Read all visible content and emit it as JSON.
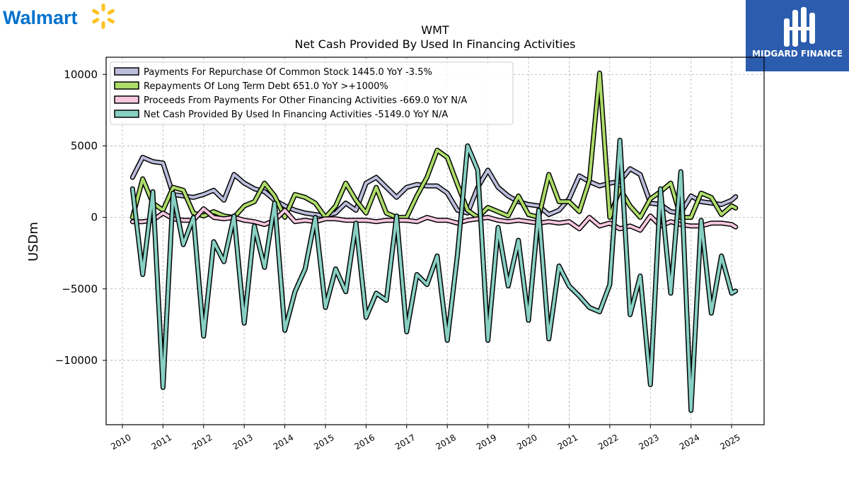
{
  "brand": {
    "left_logo_text": "Walmart",
    "right_logo_text": "MIDGARD FINANCE",
    "right_bg_color": "#2b5cad",
    "walmart_blue": "#0071ce",
    "walmart_yellow": "#ffc220"
  },
  "chart_data": {
    "type": "line",
    "title": "WMT",
    "subtitle": "Net Cash Provided By Used In Financing Activities",
    "ylabel": "USDm",
    "xlabel": "",
    "ylim": [
      -14500,
      11200
    ],
    "xlim": [
      2009.6,
      2025.8
    ],
    "yticks": [
      10000,
      5000,
      0,
      -5000,
      -10000
    ],
    "ytick_labels": [
      "10000",
      "5000",
      "0",
      "−5000",
      "−10000"
    ],
    "xticks": [
      "2010",
      "2011",
      "2012",
      "2013",
      "2014",
      "2015",
      "2016",
      "2017",
      "2018",
      "2019",
      "2020",
      "2021",
      "2022",
      "2023",
      "2024",
      "2025"
    ],
    "grid": true,
    "legend_position": "top-left",
    "series": [
      {
        "name": "Payments For Repurchase Of Common Stock",
        "legend_label": "Payments For Repurchase Of Common Stock  1445.0 YoY -3.5%",
        "color": "#bcbddc",
        "x": [
          2010.25,
          2010.5,
          2010.75,
          2011.0,
          2011.25,
          2011.5,
          2011.75,
          2012.0,
          2012.25,
          2012.5,
          2012.75,
          2013.0,
          2013.25,
          2013.5,
          2013.75,
          2014.0,
          2014.25,
          2014.5,
          2014.75,
          2015.0,
          2015.25,
          2015.5,
          2015.75,
          2016.0,
          2016.25,
          2016.5,
          2016.75,
          2017.0,
          2017.25,
          2017.5,
          2017.75,
          2018.0,
          2018.25,
          2018.5,
          2018.75,
          2019.0,
          2019.25,
          2019.5,
          2019.75,
          2020.0,
          2020.25,
          2020.5,
          2020.75,
          2021.0,
          2021.25,
          2021.5,
          2021.75,
          2022.0,
          2022.25,
          2022.5,
          2022.75,
          2023.0,
          2023.25,
          2023.5,
          2023.75,
          2024.0,
          2024.25,
          2024.5,
          2024.75,
          2025.0,
          2025.1
        ],
        "values": [
          2800,
          4200,
          3900,
          3800,
          1600,
          1500,
          1400,
          1600,
          1900,
          1200,
          3000,
          2400,
          2000,
          1800,
          1200,
          800,
          500,
          300,
          200,
          100,
          300,
          1000,
          500,
          2400,
          2800,
          2100,
          1400,
          2100,
          2300,
          2200,
          2200,
          1700,
          500,
          300,
          2100,
          3300,
          2100,
          1500,
          1100,
          900,
          800,
          200,
          500,
          1300,
          2900,
          2500,
          2200,
          2400,
          2500,
          3400,
          3000,
          1000,
          900,
          400,
          300,
          1500,
          1100,
          1000,
          900,
          1200,
          1450
        ]
      },
      {
        "name": "Repayments Of Long Term Debt",
        "legend_label": "Repayments Of Long Term Debt  651.0 YoY >+1000%",
        "color": "#addd6a",
        "x": [
          2010.25,
          2010.5,
          2010.75,
          2011.0,
          2011.25,
          2011.5,
          2011.75,
          2012.0,
          2012.25,
          2012.5,
          2012.75,
          2013.0,
          2013.25,
          2013.5,
          2013.75,
          2014.0,
          2014.25,
          2014.5,
          2014.75,
          2015.0,
          2015.25,
          2015.5,
          2015.75,
          2016.0,
          2016.25,
          2016.5,
          2016.75,
          2017.0,
          2017.25,
          2017.5,
          2017.75,
          2018.0,
          2018.25,
          2018.5,
          2018.75,
          2019.0,
          2019.25,
          2019.5,
          2019.75,
          2020.0,
          2020.25,
          2020.5,
          2020.75,
          2021.0,
          2021.25,
          2021.5,
          2021.75,
          2022.0,
          2022.25,
          2022.5,
          2022.75,
          2023.0,
          2023.25,
          2023.5,
          2023.75,
          2024.0,
          2024.25,
          2024.5,
          2024.75,
          2025.0,
          2025.1
        ],
        "values": [
          0,
          2700,
          1000,
          500,
          2100,
          1900,
          300,
          100,
          400,
          100,
          0,
          800,
          1100,
          2400,
          1500,
          0,
          1600,
          1400,
          1000,
          0,
          800,
          2400,
          1200,
          300,
          2100,
          300,
          0,
          0,
          1500,
          2800,
          4700,
          4200,
          2300,
          500,
          0,
          700,
          400,
          100,
          1500,
          200,
          0,
          3000,
          1100,
          1100,
          400,
          2600,
          10100,
          0,
          2000,
          800,
          0,
          1300,
          1800,
          2400,
          0,
          0,
          1700,
          1400,
          200,
          800,
          651
        ]
      },
      {
        "name": "Proceeds From Payments For Other Financing Activities",
        "legend_label": "Proceeds From Payments For Other Financing Activities  -669.0 YoY N/A",
        "color": "#f8c8e0",
        "x": [
          2010.25,
          2010.5,
          2010.75,
          2011.0,
          2011.25,
          2011.5,
          2011.75,
          2012.0,
          2012.25,
          2012.5,
          2012.75,
          2013.0,
          2013.25,
          2013.5,
          2013.75,
          2014.0,
          2014.25,
          2014.5,
          2014.75,
          2015.0,
          2015.25,
          2015.5,
          2015.75,
          2016.0,
          2016.25,
          2016.5,
          2016.75,
          2017.0,
          2017.25,
          2017.5,
          2017.75,
          2018.0,
          2018.25,
          2018.5,
          2018.75,
          2019.0,
          2019.25,
          2019.5,
          2019.75,
          2020.0,
          2020.25,
          2020.5,
          2020.75,
          2021.0,
          2021.25,
          2021.5,
          2021.75,
          2022.0,
          2022.25,
          2022.5,
          2022.75,
          2023.0,
          2023.25,
          2023.5,
          2023.75,
          2024.0,
          2024.25,
          2024.5,
          2024.75,
          2025.0,
          2025.1
        ],
        "values": [
          -300,
          -300,
          -200,
          300,
          -100,
          -200,
          -200,
          600,
          0,
          -100,
          0,
          -200,
          -300,
          -500,
          -200,
          500,
          -300,
          -200,
          -300,
          -100,
          -100,
          -200,
          -200,
          -200,
          -300,
          -200,
          -200,
          -200,
          -300,
          0,
          -200,
          -200,
          -400,
          -200,
          -100,
          0,
          -200,
          -300,
          -200,
          -300,
          -400,
          -300,
          -400,
          -300,
          -800,
          0,
          -600,
          -400,
          -800,
          -600,
          -900,
          100,
          -600,
          -300,
          -500,
          -600,
          -600,
          -400,
          -400,
          -500,
          -669
        ]
      },
      {
        "name": "Net Cash Provided By Used In Financing Activities",
        "legend_label": "Net Cash Provided By Used In Financing Activities  -5149.0 YoY N/A",
        "color": "#88d0c4",
        "x": [
          2010.25,
          2010.5,
          2010.75,
          2011.0,
          2011.25,
          2011.5,
          2011.75,
          2012.0,
          2012.25,
          2012.5,
          2012.75,
          2013.0,
          2013.25,
          2013.5,
          2013.75,
          2014.0,
          2014.25,
          2014.5,
          2014.75,
          2015.0,
          2015.25,
          2015.5,
          2015.75,
          2016.0,
          2016.25,
          2016.5,
          2016.75,
          2017.0,
          2017.25,
          2017.5,
          2017.75,
          2018.0,
          2018.25,
          2018.5,
          2018.75,
          2019.0,
          2019.25,
          2019.5,
          2019.75,
          2020.0,
          2020.25,
          2020.5,
          2020.75,
          2021.0,
          2021.25,
          2021.5,
          2021.75,
          2022.0,
          2022.25,
          2022.5,
          2022.75,
          2023.0,
          2023.25,
          2023.5,
          2023.75,
          2024.0,
          2024.25,
          2024.5,
          2024.75,
          2025.0,
          2025.1
        ],
        "values": [
          2000,
          -4000,
          1800,
          -11900,
          1700,
          -1900,
          0,
          -8300,
          -1700,
          -3100,
          100,
          -7400,
          -600,
          -3500,
          1000,
          -7900,
          -5200,
          -3600,
          0,
          -6300,
          -3600,
          -5200,
          -400,
          -7000,
          -5300,
          -5800,
          100,
          -8000,
          -4000,
          -4700,
          -2700,
          -8600,
          -2600,
          5000,
          3300,
          -8600,
          -700,
          -4800,
          -1600,
          -7200,
          500,
          -8500,
          -3400,
          -4800,
          -5500,
          -6300,
          -6600,
          -4700,
          5400,
          -6800,
          -4100,
          -11700,
          2000,
          -5300,
          3200,
          -13500,
          -200,
          -6700,
          -2700,
          -5300,
          -5149
        ]
      }
    ]
  }
}
